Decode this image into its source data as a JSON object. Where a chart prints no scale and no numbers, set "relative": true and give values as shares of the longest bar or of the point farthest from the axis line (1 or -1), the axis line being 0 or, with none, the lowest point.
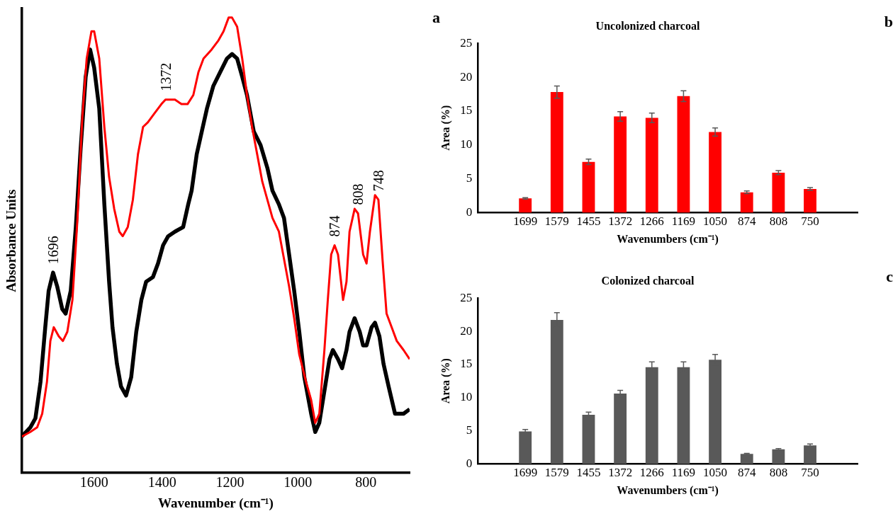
{
  "chart_data": [
    {
      "type": "line",
      "xlabel": "Wavenumber (cm⁻¹)",
      "ylabel": "Absorbance Units",
      "relative": true,
      "xlim": [
        1813,
        671
      ],
      "xticks": [
        1600,
        1400,
        1200,
        1000,
        800
      ],
      "legend": false,
      "annotations": [
        {
          "text": "1696",
          "x": 1721,
          "y": 0.44
        },
        {
          "text": "1372",
          "x": 1390,
          "y": 0.82
        },
        {
          "text": "874",
          "x": 892,
          "y": 0.5
        },
        {
          "text": "808",
          "x": 823,
          "y": 0.57
        },
        {
          "text": "748",
          "x": 763,
          "y": 0.6
        }
      ],
      "series": [
        {
          "color": "#ff0000",
          "x": [
            1813,
            1788,
            1768,
            1753,
            1739,
            1729,
            1719,
            1704,
            1692,
            1679,
            1664,
            1649,
            1635,
            1622,
            1608,
            1600,
            1585,
            1570,
            1556,
            1541,
            1526,
            1516,
            1501,
            1486,
            1471,
            1456,
            1442,
            1422,
            1402,
            1390,
            1362,
            1343,
            1325,
            1308,
            1293,
            1278,
            1254,
            1234,
            1219,
            1204,
            1194,
            1179,
            1164,
            1150,
            1135,
            1120,
            1105,
            1090,
            1075,
            1056,
            1041,
            1026,
            1011,
            996,
            976,
            961,
            949,
            937,
            922,
            912,
            902,
            892,
            882,
            867,
            857,
            848,
            833,
            823,
            808,
            798,
            788,
            773,
            763,
            751,
            739,
            724,
            709,
            689,
            671
          ],
          "values": [
            0.08,
            0.09,
            0.1,
            0.13,
            0.2,
            0.29,
            0.32,
            0.3,
            0.29,
            0.31,
            0.38,
            0.56,
            0.78,
            0.91,
            0.97,
            0.97,
            0.91,
            0.76,
            0.65,
            0.58,
            0.53,
            0.52,
            0.54,
            0.6,
            0.7,
            0.76,
            0.77,
            0.79,
            0.81,
            0.82,
            0.82,
            0.81,
            0.81,
            0.83,
            0.88,
            0.91,
            0.93,
            0.95,
            0.97,
            1.0,
            1.0,
            0.98,
            0.91,
            0.83,
            0.76,
            0.7,
            0.64,
            0.6,
            0.56,
            0.53,
            0.47,
            0.41,
            0.34,
            0.26,
            0.2,
            0.16,
            0.11,
            0.13,
            0.27,
            0.38,
            0.48,
            0.5,
            0.48,
            0.38,
            0.42,
            0.53,
            0.58,
            0.57,
            0.48,
            0.46,
            0.53,
            0.61,
            0.6,
            0.47,
            0.35,
            0.32,
            0.29,
            0.27,
            0.25
          ]
        },
        {
          "color": "#000000",
          "x": [
            1813,
            1788,
            1773,
            1758,
            1744,
            1734,
            1721,
            1709,
            1694,
            1684,
            1669,
            1654,
            1640,
            1625,
            1612,
            1600,
            1585,
            1570,
            1556,
            1546,
            1533,
            1521,
            1506,
            1491,
            1476,
            1461,
            1447,
            1427,
            1412,
            1397,
            1382,
            1362,
            1338,
            1323,
            1313,
            1298,
            1283,
            1268,
            1249,
            1229,
            1209,
            1194,
            1179,
            1164,
            1150,
            1130,
            1110,
            1090,
            1075,
            1056,
            1041,
            1026,
            1011,
            996,
            981,
            961,
            949,
            937,
            922,
            907,
            897,
            882,
            870,
            857,
            848,
            833,
            818,
            808,
            798,
            783,
            773,
            760,
            748,
            733,
            714,
            689,
            671
          ],
          "values": [
            0.08,
            0.1,
            0.12,
            0.2,
            0.32,
            0.4,
            0.44,
            0.41,
            0.36,
            0.35,
            0.4,
            0.54,
            0.71,
            0.87,
            0.93,
            0.89,
            0.8,
            0.59,
            0.42,
            0.32,
            0.24,
            0.19,
            0.17,
            0.21,
            0.31,
            0.38,
            0.42,
            0.43,
            0.46,
            0.5,
            0.52,
            0.53,
            0.54,
            0.59,
            0.62,
            0.7,
            0.75,
            0.8,
            0.85,
            0.88,
            0.91,
            0.92,
            0.91,
            0.87,
            0.83,
            0.75,
            0.72,
            0.67,
            0.62,
            0.59,
            0.56,
            0.48,
            0.4,
            0.31,
            0.21,
            0.13,
            0.09,
            0.11,
            0.18,
            0.25,
            0.27,
            0.25,
            0.23,
            0.27,
            0.31,
            0.34,
            0.31,
            0.28,
            0.28,
            0.32,
            0.33,
            0.3,
            0.24,
            0.19,
            0.13,
            0.13,
            0.14
          ]
        }
      ]
    },
    {
      "type": "bar",
      "title": "Uncolonized charcoal",
      "xlabel": "Wavenumbers (cm⁻¹)",
      "ylabel": "Area (%)",
      "ylim": [
        0,
        25
      ],
      "yticks": [
        0,
        5,
        10,
        15,
        20,
        25
      ],
      "legend": false,
      "annotations": [
        "a",
        "b"
      ],
      "categories": [
        null,
        "1699",
        "1579",
        "1455",
        "1372",
        "1266",
        "1169",
        "1050",
        "874",
        "808",
        "750",
        null
      ],
      "series": [
        {
          "color": "#ff0000",
          "values": [
            null,
            2.1,
            17.8,
            7.5,
            14.2,
            14.0,
            17.2,
            11.9,
            3.0,
            5.9,
            3.5,
            null
          ],
          "errors": [
            null,
            0.1,
            0.9,
            0.4,
            0.7,
            0.7,
            0.8,
            0.6,
            0.2,
            0.3,
            0.2,
            null
          ]
        }
      ]
    },
    {
      "type": "bar",
      "title": "Colonized charcoal",
      "xlabel": "Wavenumbers (cm⁻¹)",
      "ylabel": "Area (%)",
      "ylim": [
        0,
        25
      ],
      "yticks": [
        0,
        5,
        10,
        15,
        20,
        25
      ],
      "legend": false,
      "annotations": [
        "c"
      ],
      "categories": [
        null,
        "1699",
        "1579",
        "1455",
        "1372",
        "1266",
        "1169",
        "1050",
        "874",
        "808",
        "750",
        null
      ],
      "series": [
        {
          "color": "#595959",
          "values": [
            null,
            4.9,
            21.7,
            7.4,
            10.6,
            14.6,
            14.6,
            15.7,
            1.5,
            2.2,
            2.8,
            null
          ],
          "errors": [
            null,
            0.3,
            1.1,
            0.4,
            0.5,
            0.8,
            0.8,
            0.8,
            0.1,
            0.1,
            0.2,
            null
          ]
        }
      ]
    }
  ]
}
